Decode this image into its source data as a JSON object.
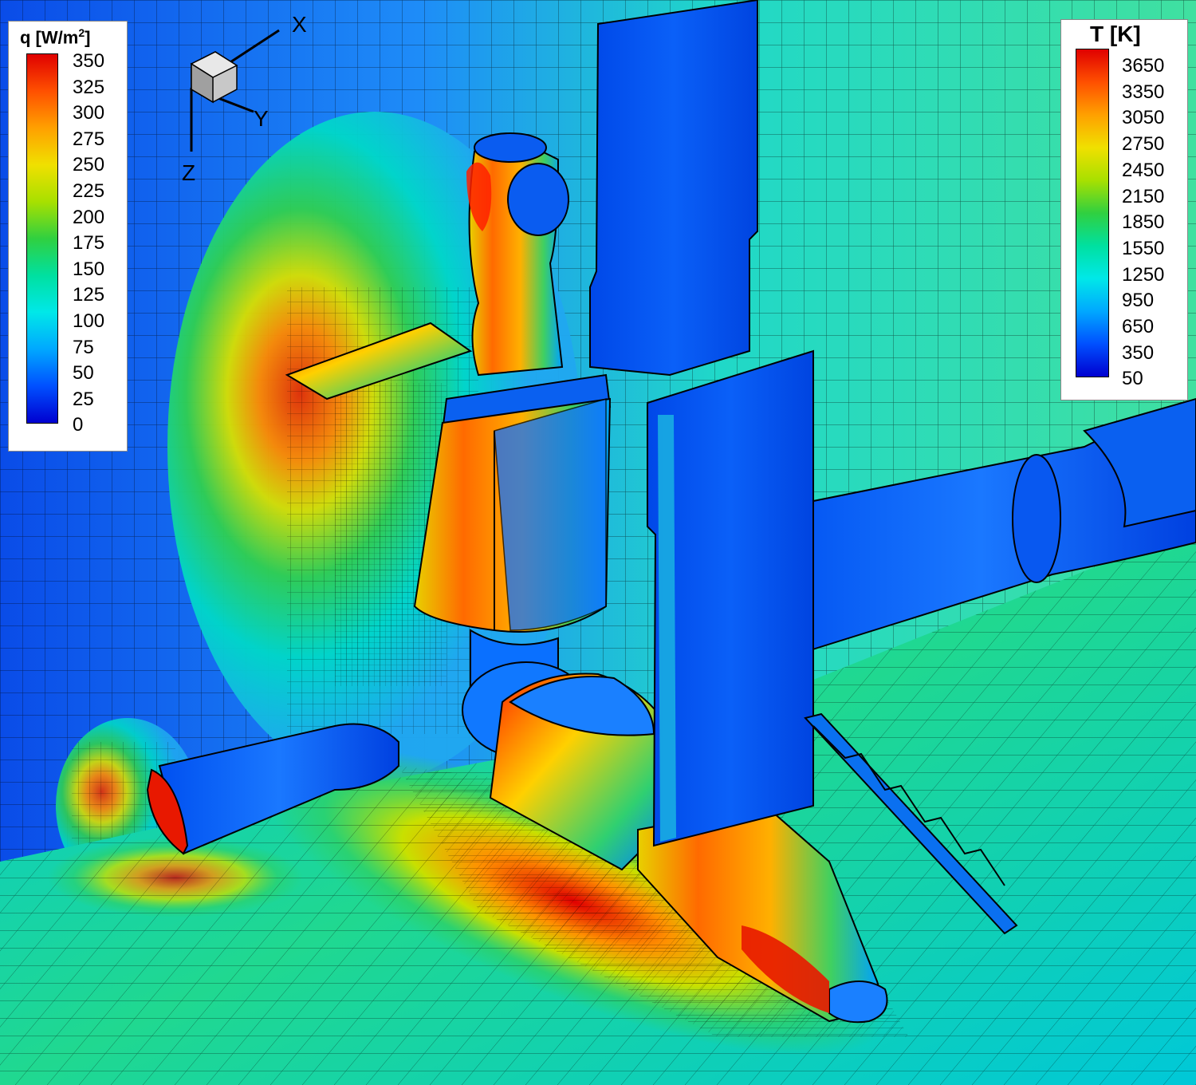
{
  "legend_q": {
    "title_main": "q [W/m",
    "title_sup": "2",
    "title_end": "]",
    "ticks": [
      "350",
      "325",
      "300",
      "275",
      "250",
      "225",
      "200",
      "175",
      "150",
      "125",
      "100",
      "75",
      "50",
      "25",
      "0"
    ]
  },
  "legend_t": {
    "title": "T [K]",
    "ticks": [
      "3650",
      "3350",
      "3050",
      "2750",
      "2450",
      "2150",
      "1850",
      "1550",
      "1250",
      "950",
      "650",
      "350",
      "50"
    ]
  },
  "axes": {
    "x": "X",
    "y": "Y",
    "z": "Z"
  },
  "colormap": [
    "#0000d0",
    "#0050ff",
    "#00a8ff",
    "#00e8e8",
    "#00e0a0",
    "#30d040",
    "#a8e000",
    "#f0e000",
    "#ffa000",
    "#ff5000",
    "#e00000"
  ]
}
